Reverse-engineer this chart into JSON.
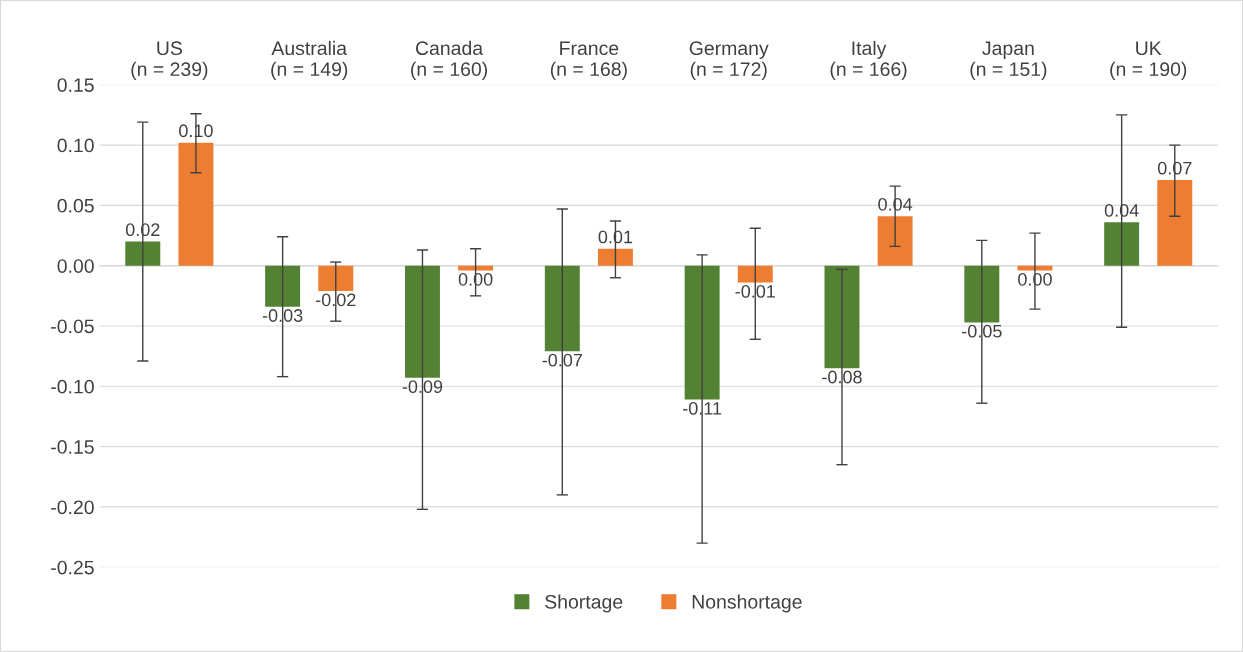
{
  "chart_data": {
    "type": "bar",
    "categories": [
      "US\n(n = 239)",
      "Australia\n(n = 149)",
      "Canada\n(n = 160)",
      "France\n(n = 168)",
      "Germany\n(n = 172)",
      "Italy\n(n = 166)",
      "Japan\n(n = 151)",
      "UK\n(n = 190)"
    ],
    "series": [
      {
        "name": "Shortage",
        "color": "#548235",
        "values": [
          0.02,
          -0.034,
          -0.093,
          -0.071,
          -0.111,
          -0.085,
          -0.047,
          0.036
        ],
        "errors": [
          [
            -0.079,
            0.119
          ],
          [
            -0.092,
            0.024
          ],
          [
            -0.202,
            0.013
          ],
          [
            -0.19,
            0.047
          ],
          [
            -0.23,
            0.009
          ],
          [
            -0.165,
            -0.003
          ],
          [
            -0.114,
            0.021
          ],
          [
            -0.051,
            0.125
          ]
        ],
        "value_labels": [
          "0.02",
          "-0.03",
          "-0.09",
          "-0.07",
          "-0.11",
          "-0.08",
          "-0.05",
          "0.04"
        ]
      },
      {
        "name": "Nonshortage",
        "color": "#ed7d31",
        "values": [
          0.102,
          -0.021,
          -0.004,
          0.014,
          -0.014,
          0.041,
          -0.004,
          0.071
        ],
        "errors": [
          [
            0.077,
            0.126
          ],
          [
            -0.046,
            0.003
          ],
          [
            -0.025,
            0.014
          ],
          [
            -0.01,
            0.037
          ],
          [
            -0.061,
            0.031
          ],
          [
            0.016,
            0.066
          ],
          [
            -0.036,
            0.027
          ],
          [
            0.041,
            0.1
          ]
        ],
        "value_labels": [
          "0.10",
          "-0.02",
          "0.00",
          "0.01",
          "-0.01",
          "0.04",
          "0.00",
          "0.07"
        ]
      }
    ],
    "ylim": [
      -0.25,
      0.15
    ],
    "yticks": [
      {
        "value": -0.25,
        "label": "-0.25"
      },
      {
        "value": -0.2,
        "label": "-0.20"
      },
      {
        "value": -0.15,
        "label": "-0.15"
      },
      {
        "value": -0.1,
        "label": "-0.10"
      },
      {
        "value": -0.05,
        "label": "-0.05"
      },
      {
        "value": 0,
        "label": "0.00"
      },
      {
        "value": 0.05,
        "label": "0.05"
      },
      {
        "value": 0.1,
        "label": "0.10"
      },
      {
        "value": 0.15,
        "label": "0.15"
      }
    ],
    "grid": "y",
    "legend": "bottom"
  }
}
